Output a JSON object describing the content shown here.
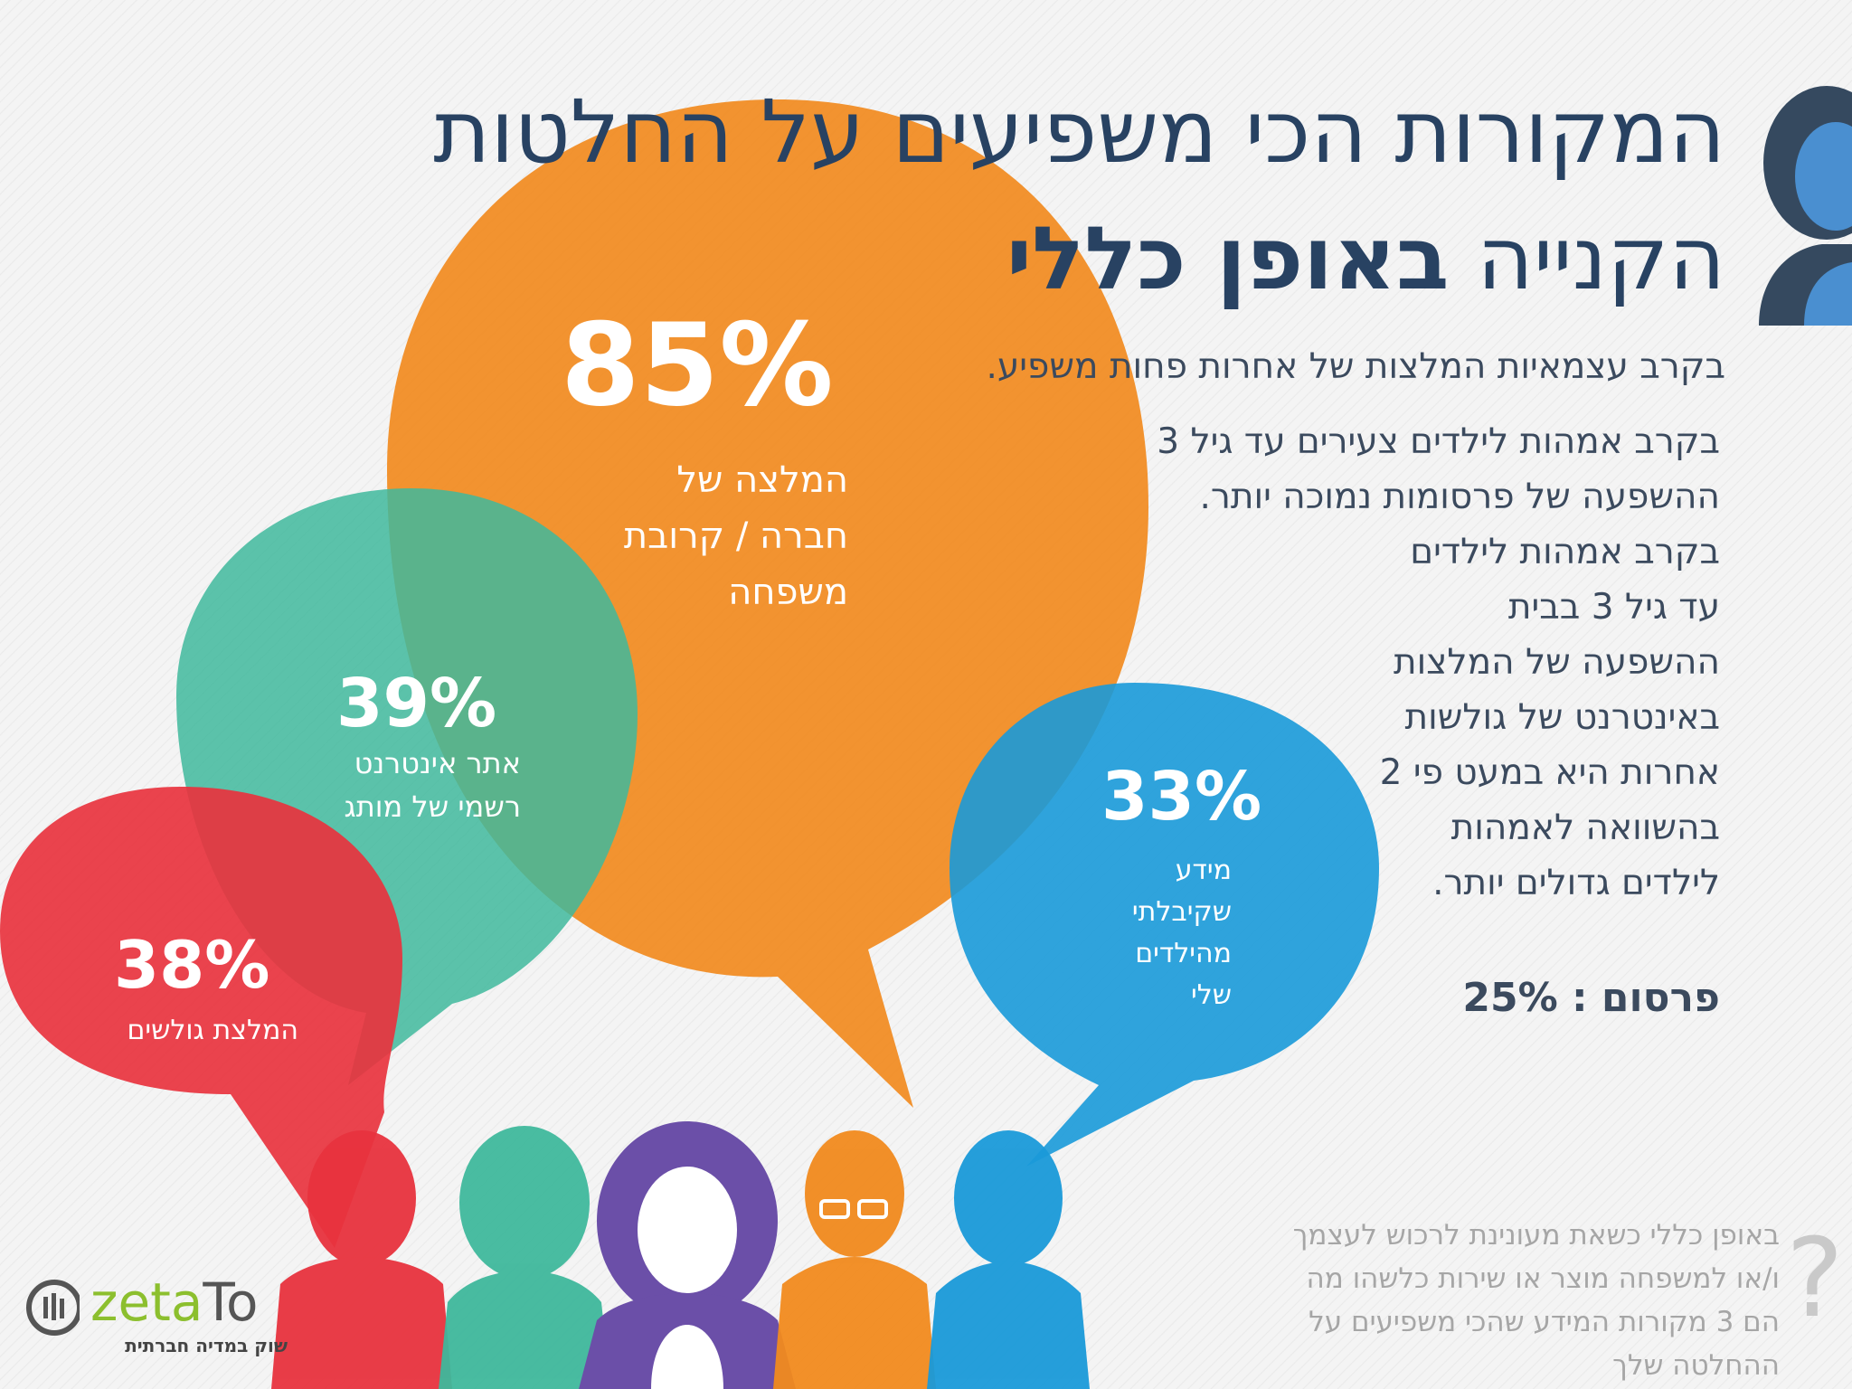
{
  "title": {
    "line1": "המקורות הכי משפיעים על החלטות",
    "line2_plain": "הקנייה",
    "line2_bold": "באופן כללי"
  },
  "note_top": "בקרב עצמאיות המלצות של אחרות פחות משפיע.",
  "note_body": [
    "בקרב אמהות לילדים צעירים עד גיל 3",
    "ההשפעה של פרסומות נמוכה יותר.",
    "בקרב אמהות לילדים",
    "עד גיל 3 בבית",
    "ההשפעה של המלצות",
    "באינטרנט של גולשות",
    "אחרות היא במעט פי 2",
    "בהשוואה לאמהות",
    "לילדים גדולים יותר."
  ],
  "advertising": {
    "label": "פרסום :",
    "value": "25%"
  },
  "bubbles": {
    "orange": {
      "percent": "85%",
      "lines": [
        "המלצה של",
        "חברה / קרובת",
        "משפחה"
      ],
      "color": "#f18a1e"
    },
    "teal": {
      "percent": "39%",
      "lines": [
        "אתר אינטרנט",
        "רשמי של מותג"
      ],
      "color": "#3fb89c"
    },
    "red": {
      "percent": "38%",
      "lines": [
        "המלצת גולשים"
      ],
      "color": "#e8333e"
    },
    "blue": {
      "percent": "33%",
      "lines": [
        "מידע",
        "שקיבלתי",
        "מהילדים",
        "שלי"
      ],
      "color": "#1a9ad9"
    }
  },
  "question": [
    "באופן כללי כשאת מעונינת לרכוש לעצמך",
    "ו/או למשפחה מוצר או שירות כלשהו  מה",
    "הם 3 מקורות המידע שהכי משפיעים על",
    "ההחלטה שלך"
  ],
  "question_mark": "?",
  "logo": {
    "brand_a": "zeta",
    "brand_b": "To",
    "tagline": "שוק במדיה חברתית"
  },
  "people_colors": [
    "#e8333e",
    "#3fb89c",
    "#6b4fa8",
    "#f18a1e",
    "#1a9ad9"
  ],
  "person_icon_color": "#4a8fd0"
}
